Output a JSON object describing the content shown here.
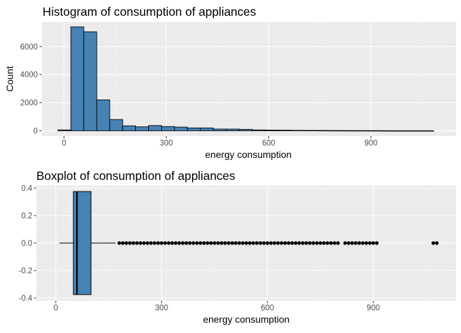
{
  "chart_data": [
    {
      "type": "histogram",
      "title": "Histogram of consumption of appliances",
      "xlabel": "energy consumption",
      "ylabel": "Count",
      "xlim": [
        -65,
        1150
      ],
      "ylim": [
        -370,
        7750
      ],
      "xticks": [
        0,
        300,
        600,
        900
      ],
      "yticks": [
        0,
        2000,
        4000,
        6000
      ],
      "grid": true,
      "fill_color": "#4682B4",
      "edge_color": "#000000",
      "panel_bg": "#EBEBEB",
      "bins": [
        {
          "x0": -18,
          "x1": 20,
          "count": 60
        },
        {
          "x0": 20,
          "x1": 58,
          "count": 7400
        },
        {
          "x0": 58,
          "x1": 96,
          "count": 7050
        },
        {
          "x0": 96,
          "x1": 134,
          "count": 2200
        },
        {
          "x0": 134,
          "x1": 172,
          "count": 800
        },
        {
          "x0": 172,
          "x1": 210,
          "count": 350
        },
        {
          "x0": 210,
          "x1": 248,
          "count": 280
        },
        {
          "x0": 248,
          "x1": 286,
          "count": 370
        },
        {
          "x0": 286,
          "x1": 324,
          "count": 300
        },
        {
          "x0": 324,
          "x1": 362,
          "count": 260
        },
        {
          "x0": 362,
          "x1": 400,
          "count": 200
        },
        {
          "x0": 400,
          "x1": 438,
          "count": 200
        },
        {
          "x0": 438,
          "x1": 476,
          "count": 120
        },
        {
          "x0": 476,
          "x1": 514,
          "count": 120
        },
        {
          "x0": 514,
          "x1": 552,
          "count": 100
        },
        {
          "x0": 552,
          "x1": 590,
          "count": 60
        },
        {
          "x0": 590,
          "x1": 628,
          "count": 50
        },
        {
          "x0": 628,
          "x1": 666,
          "count": 40
        },
        {
          "x0": 666,
          "x1": 704,
          "count": 30
        },
        {
          "x0": 704,
          "x1": 742,
          "count": 25
        },
        {
          "x0": 742,
          "x1": 780,
          "count": 20
        },
        {
          "x0": 780,
          "x1": 818,
          "count": 15
        },
        {
          "x0": 818,
          "x1": 856,
          "count": 12
        },
        {
          "x0": 856,
          "x1": 894,
          "count": 10
        },
        {
          "x0": 894,
          "x1": 932,
          "count": 8
        },
        {
          "x0": 932,
          "x1": 970,
          "count": 3
        },
        {
          "x0": 970,
          "x1": 1008,
          "count": 2
        },
        {
          "x0": 1008,
          "x1": 1046,
          "count": 2
        },
        {
          "x0": 1046,
          "x1": 1084,
          "count": 2
        }
      ]
    },
    {
      "type": "boxplot",
      "title": "Boxplot of consumption of appliances",
      "xlabel": "energy consumption",
      "xlim": [
        -55,
        1135
      ],
      "ylim": [
        -0.42,
        0.42
      ],
      "xticks": [
        0,
        300,
        600,
        900
      ],
      "yticks": [
        -0.4,
        -0.2,
        0.0,
        0.2,
        0.4
      ],
      "ytick_labels": [
        "-0.4",
        "-0.2",
        "0.0",
        "0.2",
        "0.4"
      ],
      "grid": true,
      "fill_color": "#4682B4",
      "edge_color": "#000000",
      "panel_bg": "#EBEBEB",
      "box": {
        "whisker_low": 10,
        "q1": 50,
        "median": 60,
        "q3": 100,
        "whisker_high": 170,
        "ymin": -0.375,
        "ymax": 0.375
      },
      "outliers": [
        180,
        190,
        200,
        210,
        220,
        230,
        240,
        250,
        260,
        270,
        280,
        290,
        300,
        310,
        320,
        330,
        340,
        350,
        360,
        370,
        380,
        390,
        400,
        410,
        420,
        430,
        440,
        450,
        460,
        470,
        480,
        490,
        500,
        510,
        520,
        530,
        540,
        550,
        560,
        570,
        580,
        590,
        600,
        610,
        620,
        630,
        640,
        650,
        660,
        670,
        680,
        690,
        700,
        710,
        720,
        730,
        740,
        750,
        760,
        770,
        780,
        790,
        800,
        820,
        830,
        840,
        850,
        860,
        870,
        880,
        890,
        900,
        910,
        1070,
        1080
      ]
    }
  ]
}
